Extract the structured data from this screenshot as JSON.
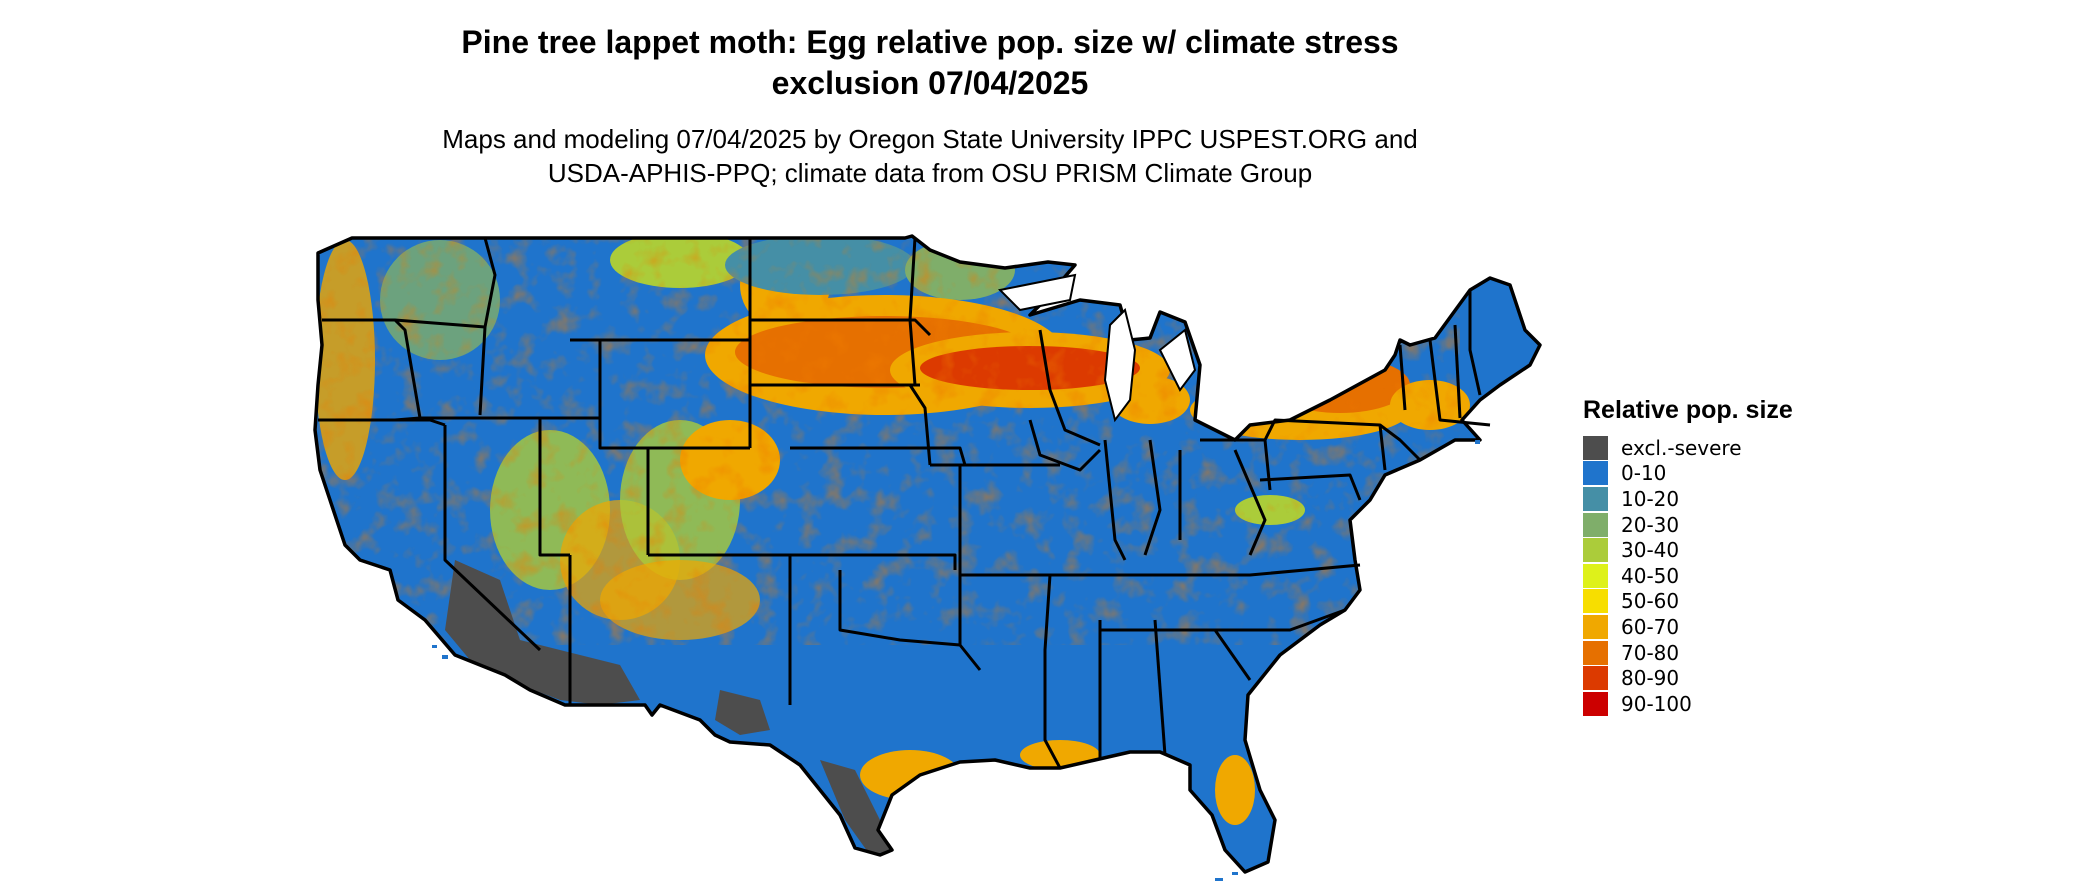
{
  "title": {
    "line1": "Pine tree lappet moth: Egg relative pop. size w/ climate stress",
    "line2": "exclusion 07/04/2025"
  },
  "subtitle": {
    "line1": "Maps and modeling 07/04/2025 by Oregon State University IPPC USPEST.ORG and",
    "line2": "USDA-APHIS-PPQ; climate data from OSU PRISM Climate Group"
  },
  "legend": {
    "title": "Relative pop. size",
    "items": [
      {
        "label": "excl.-severe",
        "color": "#4d4d4d"
      },
      {
        "label": "0-10",
        "color": "#1f74cc"
      },
      {
        "label": "10-20",
        "color": "#458fa6"
      },
      {
        "label": "20-30",
        "color": "#7fae6a"
      },
      {
        "label": "30-40",
        "color": "#abcc3a"
      },
      {
        "label": "40-50",
        "color": "#def11a"
      },
      {
        "label": "50-60",
        "color": "#f7de00"
      },
      {
        "label": "60-70",
        "color": "#f0a800"
      },
      {
        "label": "70-80",
        "color": "#e67000"
      },
      {
        "label": "80-90",
        "color": "#dc3a00"
      },
      {
        "label": "90-100",
        "color": "#cc0000"
      }
    ]
  }
}
